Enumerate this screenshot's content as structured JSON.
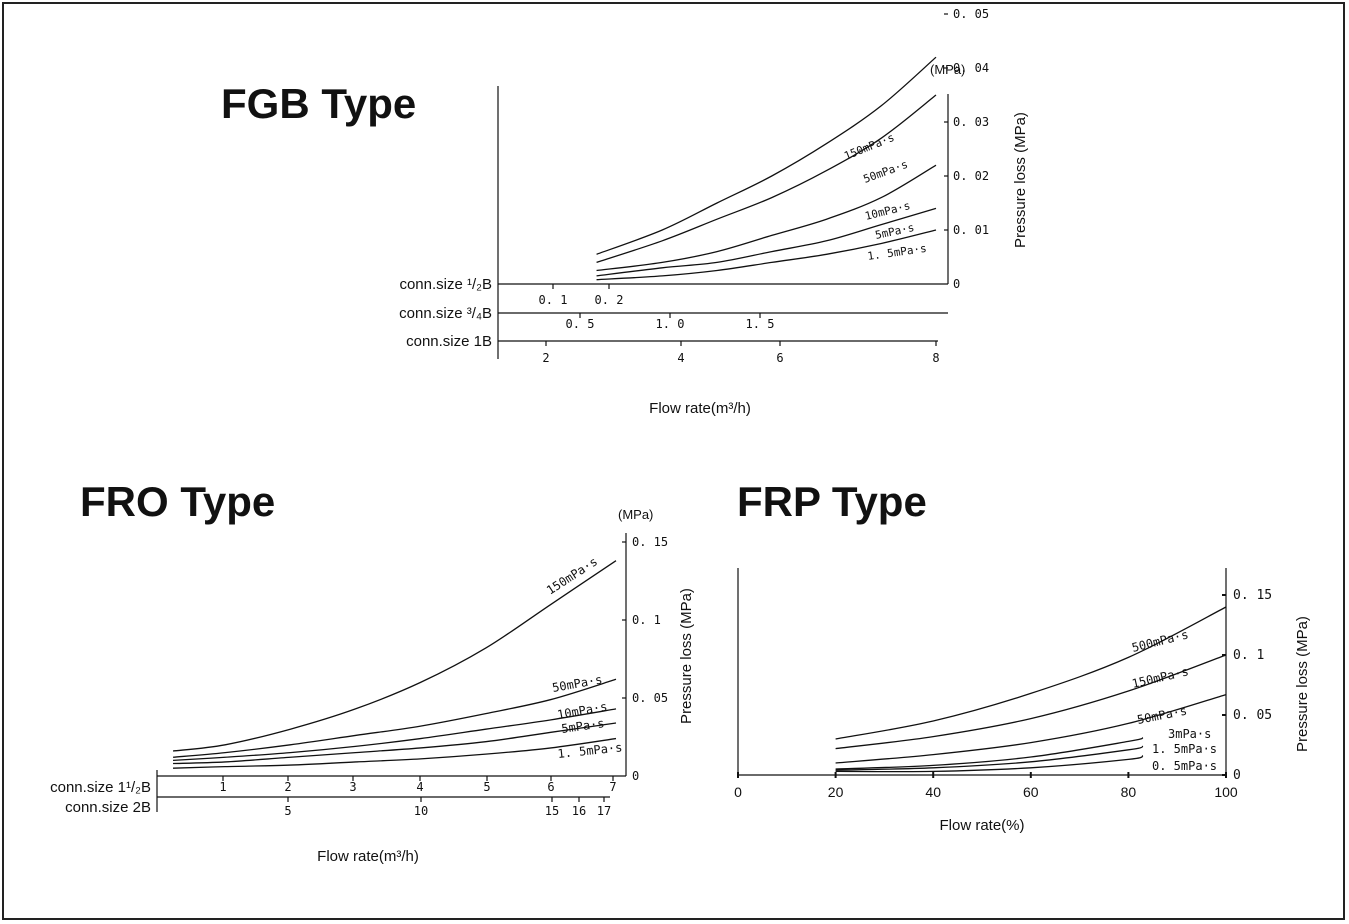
{
  "chart_data": [
    {
      "type": "line",
      "title": "FGB Type",
      "xlabel": "Flow rate(m³/h)",
      "ylabel": "Pressure loss (MPa)",
      "y_unit": "(MPa)",
      "ylim": [
        0,
        0.05
      ],
      "y_ticks": [
        "0",
        "0. 01",
        "0. 02",
        "0. 03",
        "0. 04",
        "0. 05"
      ],
      "x_scales": [
        {
          "label": "conn.size ¹/₂B",
          "ticks": [
            "0. 1",
            "0. 2"
          ]
        },
        {
          "label": "conn.size ³/₄B",
          "ticks": [
            "0. 5",
            "1. 0",
            "1. 5"
          ]
        },
        {
          "label": "conn.size 1B",
          "ticks": [
            "2",
            "4",
            "6",
            "8"
          ]
        }
      ],
      "series": [
        {
          "name": "150mPa·s",
          "x": [
            1.8,
            3,
            4,
            5,
            6,
            7,
            8
          ],
          "y": [
            0.0055,
            0.01,
            0.015,
            0.02,
            0.026,
            0.033,
            0.042
          ]
        },
        {
          "name": "50mPa·s",
          "x": [
            1.8,
            3,
            4,
            5,
            6,
            7,
            8
          ],
          "y": [
            0.004,
            0.008,
            0.012,
            0.016,
            0.021,
            0.027,
            0.035
          ]
        },
        {
          "name": "10mPa·s",
          "x": [
            1.8,
            3,
            4,
            5,
            6,
            7,
            8
          ],
          "y": [
            0.0025,
            0.004,
            0.006,
            0.009,
            0.012,
            0.016,
            0.022
          ]
        },
        {
          "name": "5mPa·s",
          "x": [
            1.8,
            3,
            4,
            5,
            6,
            7,
            8
          ],
          "y": [
            0.0015,
            0.003,
            0.004,
            0.006,
            0.008,
            0.011,
            0.014
          ]
        },
        {
          "name": "1. 5mPa·s",
          "x": [
            1.8,
            3,
            4,
            5,
            6,
            7,
            8
          ],
          "y": [
            0.0008,
            0.0015,
            0.0025,
            0.004,
            0.0055,
            0.0075,
            0.01
          ]
        }
      ]
    },
    {
      "type": "line",
      "title": "FRO Type",
      "xlabel": "Flow rate(m³/h)",
      "ylabel": "Pressure loss (MPa)",
      "y_unit": "(MPa)",
      "ylim": [
        0,
        0.15
      ],
      "y_ticks": [
        "0",
        "0. 05",
        "0. 1",
        "0. 15"
      ],
      "x_scales": [
        {
          "label": "conn.size 1¹/₂B",
          "ticks": [
            "1",
            "2",
            "3",
            "4",
            "5",
            "6",
            "7"
          ]
        },
        {
          "label": "conn.size 2B",
          "ticks": [
            "5",
            "10",
            "15",
            "16",
            "17"
          ]
        }
      ],
      "series": [
        {
          "name": "150mPa·s",
          "x": [
            0.2,
            1,
            2,
            3,
            4,
            5,
            6,
            7
          ],
          "y": [
            0.016,
            0.02,
            0.03,
            0.043,
            0.06,
            0.082,
            0.11,
            0.138
          ]
        },
        {
          "name": "50mPa·s",
          "x": [
            0.2,
            1,
            2,
            3,
            4,
            5,
            6,
            7
          ],
          "y": [
            0.012,
            0.015,
            0.02,
            0.026,
            0.032,
            0.04,
            0.049,
            0.062
          ]
        },
        {
          "name": "10mPa·s",
          "x": [
            0.2,
            1,
            2,
            3,
            4,
            5,
            6,
            7
          ],
          "y": [
            0.01,
            0.012,
            0.015,
            0.019,
            0.024,
            0.03,
            0.036,
            0.043
          ]
        },
        {
          "name": "5mPa·s",
          "x": [
            0.2,
            1,
            2,
            3,
            4,
            5,
            6,
            7
          ],
          "y": [
            0.008,
            0.009,
            0.012,
            0.015,
            0.018,
            0.022,
            0.028,
            0.034
          ]
        },
        {
          "name": "1. 5mPa·s",
          "x": [
            0.2,
            1,
            2,
            3,
            4,
            5,
            6,
            7
          ],
          "y": [
            0.005,
            0.006,
            0.007,
            0.009,
            0.011,
            0.014,
            0.018,
            0.024
          ]
        }
      ]
    },
    {
      "type": "line",
      "title": "FRP Type",
      "xlabel": "Flow rate(%)",
      "ylabel": "Pressure loss (MPa)",
      "xlim": [
        0,
        100
      ],
      "ylim": [
        0,
        0.175
      ],
      "x_ticks": [
        "0",
        "20",
        "40",
        "60",
        "80",
        "100"
      ],
      "y_ticks": [
        "0",
        "0. 05",
        "0. 1",
        "0. 15"
      ],
      "series": [
        {
          "name": "500mPa·s",
          "x": [
            20,
            40,
            60,
            80,
            100
          ],
          "y": [
            0.03,
            0.045,
            0.068,
            0.098,
            0.14
          ]
        },
        {
          "name": "150mPa·s",
          "x": [
            20,
            40,
            60,
            80,
            100
          ],
          "y": [
            0.022,
            0.032,
            0.047,
            0.07,
            0.1
          ]
        },
        {
          "name": "50mPa·s",
          "x": [
            20,
            40,
            60,
            80,
            100
          ],
          "y": [
            0.01,
            0.017,
            0.027,
            0.043,
            0.067
          ]
        },
        {
          "name": "3mPa·s",
          "x": [
            20,
            40,
            60,
            80,
            83
          ],
          "y": [
            0.005,
            0.008,
            0.015,
            0.028,
            0.031
          ]
        },
        {
          "name": "1. 5mPa·s",
          "x": [
            20,
            40,
            60,
            80,
            83
          ],
          "y": [
            0.004,
            0.006,
            0.011,
            0.021,
            0.024
          ]
        },
        {
          "name": "0. 5mPa·s",
          "x": [
            20,
            40,
            60,
            80,
            83
          ],
          "y": [
            0.003,
            0.003,
            0.006,
            0.013,
            0.016
          ]
        }
      ]
    }
  ]
}
